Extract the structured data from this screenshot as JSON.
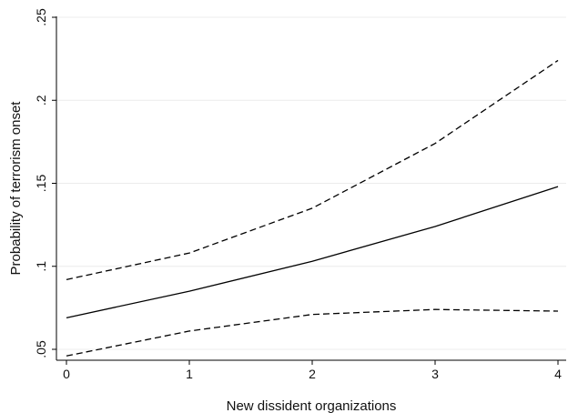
{
  "chart_data": {
    "type": "line",
    "title": "",
    "xlabel": "New dissident organizations",
    "ylabel": "Probability of terrorism onset",
    "x": [
      0,
      1,
      2,
      3,
      4
    ],
    "xticks": [
      "0",
      "1",
      "2",
      "3",
      "4"
    ],
    "xlim": [
      0,
      4
    ],
    "yticks": [
      0.05,
      0.1,
      0.15,
      0.2,
      0.25
    ],
    "ytick_labels": [
      ".05",
      ".1",
      ".15",
      ".2",
      ".25"
    ],
    "ylim": [
      0.05,
      0.25
    ],
    "grid": true,
    "series": [
      {
        "style": "dashed",
        "values": [
          0.092,
          0.108,
          0.135,
          0.174,
          0.224
        ]
      },
      {
        "style": "solid",
        "values": [
          0.069,
          0.085,
          0.103,
          0.124,
          0.148
        ]
      },
      {
        "style": "dashed",
        "values": [
          0.046,
          0.061,
          0.071,
          0.074,
          0.073
        ]
      }
    ]
  }
}
